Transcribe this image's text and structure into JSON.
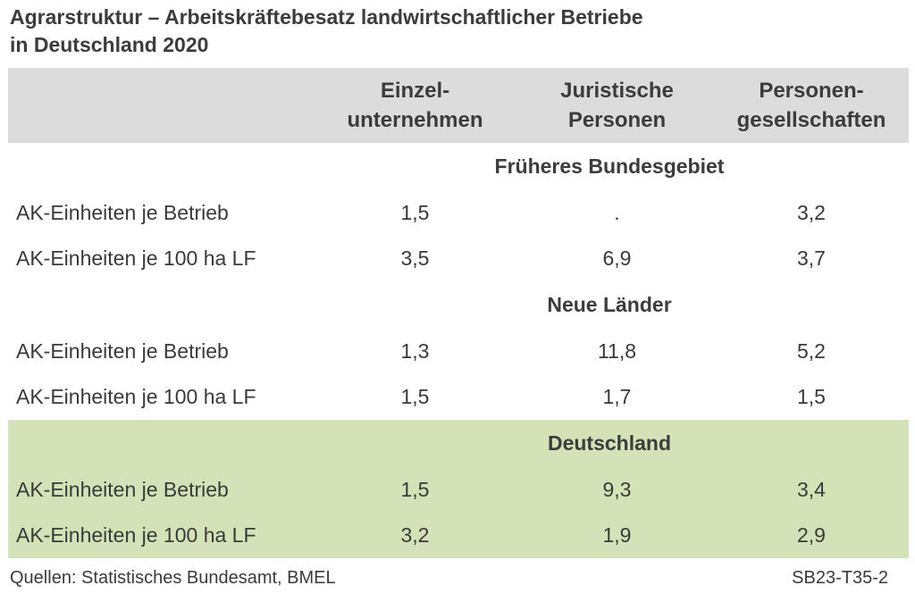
{
  "title": {
    "line1": "Agrarstruktur – Arbeitskräftebesatz landwirtschaftlicher Betriebe",
    "line2": "in Deutschland 2020"
  },
  "columns": [
    {
      "line1": "Einzel-",
      "line2": "unternehmen"
    },
    {
      "line1": "Juristische",
      "line2": "Personen"
    },
    {
      "line1": "Personen-",
      "line2": "gesellschaften"
    }
  ],
  "sections": [
    {
      "title": "Früheres Bundesgebiet",
      "rows": [
        {
          "label": "AK-Einheiten je Betrieb",
          "values": [
            "1,5",
            ".",
            "3,2"
          ]
        },
        {
          "label": "AK-Einheiten je 100 ha LF",
          "values": [
            "3,5",
            "6,9",
            "3,7"
          ]
        }
      ]
    },
    {
      "title": "Neue Länder",
      "rows": [
        {
          "label": "AK-Einheiten je Betrieb",
          "values": [
            "1,3",
            "11,8",
            "5,2"
          ]
        },
        {
          "label": "AK-Einheiten je 100 ha LF",
          "values": [
            "1,5",
            "1,7",
            "1,5"
          ]
        }
      ]
    },
    {
      "title": "Deutschland",
      "rows": [
        {
          "label": "AK-Einheiten je Betrieb",
          "values": [
            "1,5",
            "9,3",
            "3,4"
          ]
        },
        {
          "label": "AK-Einheiten je 100 ha LF",
          "values": [
            "3,2",
            "1,9",
            "2,9"
          ]
        }
      ]
    }
  ],
  "footer": {
    "source": "Quellen: Statistisches Bundesamt, BMEL",
    "code": "SB23-T35-2"
  },
  "colors": {
    "header_bg": "#dcdcdc",
    "highlight_bg": "#d4e3b7",
    "text": "#3a3a3a"
  }
}
